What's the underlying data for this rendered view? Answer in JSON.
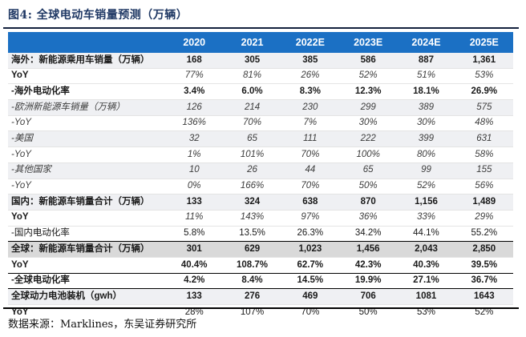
{
  "figure": {
    "title": "图4:  全球电动车销量预测（万辆）",
    "source": "数据来源：Marklines，东吴证券研究所"
  },
  "colors": {
    "header_bg": "#1B70C4",
    "title_text": "#1F3864",
    "stripe_bg": "#EFF0F3",
    "highlight_bg": "#D9D9D9",
    "rule": "#14213D",
    "border_black": "#000000"
  },
  "table": {
    "columns": [
      "",
      "2020",
      "2021",
      "2022E",
      "2023E",
      "2024E",
      "2025E"
    ],
    "rows": [
      {
        "label": "海外：新能源乘用车销量（万辆）",
        "values": [
          "168",
          "305",
          "385",
          "586",
          "887",
          "1,361"
        ],
        "label_style": "bold",
        "value_style": "bold",
        "bg": "stripe",
        "top_border": false
      },
      {
        "label": "YoY",
        "values": [
          "77%",
          "81%",
          "26%",
          "52%",
          "51%",
          "53%"
        ],
        "label_style": "bold",
        "value_style": "italic",
        "bg": "white",
        "top_border": false
      },
      {
        "label": "-海外电动化率",
        "values": [
          "3.4%",
          "6.0%",
          "8.3%",
          "12.3%",
          "18.1%",
          "26.9%"
        ],
        "label_style": "bold",
        "value_style": "bold",
        "bg": "white",
        "top_border": false
      },
      {
        "label": "-欧洲新能源车销量（万辆）",
        "values": [
          "126",
          "214",
          "230",
          "299",
          "389",
          "575"
        ],
        "label_style": "italic",
        "value_style": "italic",
        "bg": "stripe",
        "top_border": false
      },
      {
        "label": "-YoY",
        "values": [
          "136%",
          "70%",
          "7%",
          "30%",
          "30%",
          "48%"
        ],
        "label_style": "italic",
        "value_style": "italic",
        "bg": "white",
        "top_border": false
      },
      {
        "label": "-美国",
        "values": [
          "32",
          "65",
          "111",
          "222",
          "399",
          "631"
        ],
        "label_style": "italic",
        "value_style": "italic",
        "bg": "stripe",
        "top_border": false
      },
      {
        "label": "-YoY",
        "values": [
          "1%",
          "101%",
          "70%",
          "100%",
          "80%",
          "58%"
        ],
        "label_style": "italic",
        "value_style": "italic",
        "bg": "white",
        "top_border": false
      },
      {
        "label": "-其他国家",
        "values": [
          "10",
          "26",
          "44",
          "65",
          "99",
          "155"
        ],
        "label_style": "italic",
        "value_style": "italic",
        "bg": "stripe",
        "top_border": false
      },
      {
        "label": "-YoY",
        "values": [
          "0%",
          "166%",
          "70%",
          "50%",
          "52%",
          "56%"
        ],
        "label_style": "italic",
        "value_style": "italic",
        "bg": "white",
        "top_border": false
      },
      {
        "label": "国内：新能源车销量合计（万辆）",
        "values": [
          "133",
          "324",
          "638",
          "870",
          "1,156",
          "1,489"
        ],
        "label_style": "bold",
        "value_style": "bold",
        "bg": "stripe",
        "top_border": false
      },
      {
        "label": "YoY",
        "values": [
          "11%",
          "143%",
          "97%",
          "36%",
          "33%",
          "29%"
        ],
        "label_style": "bold",
        "value_style": "italic",
        "bg": "white",
        "top_border": false
      },
      {
        "label": "-国内电动化率",
        "values": [
          "5.8%",
          "13.5%",
          "26.3%",
          "34.2%",
          "44.1%",
          "55.2%"
        ],
        "label_style": "regular",
        "value_style": "regular",
        "bg": "white",
        "top_border": false
      },
      {
        "label": "全球：新能源车销量合计（万辆）",
        "values": [
          "301",
          "629",
          "1,023",
          "1,456",
          "2,043",
          "2,850"
        ],
        "label_style": "bold",
        "value_style": "bold",
        "bg": "gray",
        "top_border": true
      },
      {
        "label": "YoY",
        "values": [
          "40.4%",
          "108.7%",
          "62.7%",
          "42.3%",
          "40.3%",
          "39.5%"
        ],
        "label_style": "bold",
        "value_style": "bold",
        "bg": "white",
        "top_border": false
      },
      {
        "label": "-全球电动化率",
        "values": [
          "4.2%",
          "8.4%",
          "14.5%",
          "19.9%",
          "27.1%",
          "36.7%"
        ],
        "label_style": "bold",
        "value_style": "bold",
        "bg": "white",
        "top_border": true
      },
      {
        "label": "全球动力电池装机（gwh）",
        "values": [
          "133",
          "276",
          "469",
          "706",
          "1081",
          "1643"
        ],
        "label_style": "bold",
        "value_style": "bold",
        "bg": "stripe",
        "top_border": true
      },
      {
        "label": "YoY",
        "values": [
          "28%",
          "107%",
          "70%",
          "50%",
          "53%",
          "52%"
        ],
        "label_style": "bold",
        "value_style": "regular",
        "bg": "white",
        "top_border": false
      }
    ]
  }
}
